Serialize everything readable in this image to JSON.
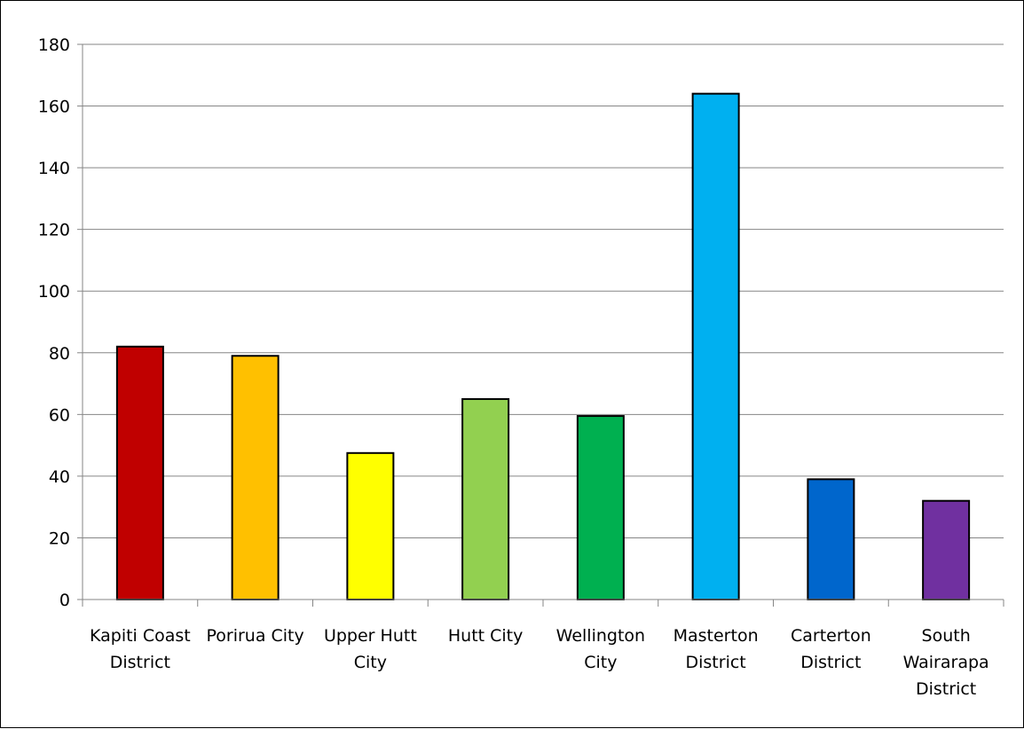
{
  "chart_data": {
    "type": "bar",
    "title": "",
    "xlabel": "",
    "ylabel": "",
    "ylim": [
      0,
      180
    ],
    "yticks": [
      0,
      20,
      40,
      60,
      80,
      100,
      120,
      140,
      160,
      180
    ],
    "grid": true,
    "legend": "none",
    "categories": [
      [
        "Kapiti Coast",
        "District"
      ],
      [
        "Porirua City"
      ],
      [
        "Upper Hutt",
        "City"
      ],
      [
        "Hutt City"
      ],
      [
        "Wellington",
        "City"
      ],
      [
        "Masterton",
        "District"
      ],
      [
        "Carterton",
        "District"
      ],
      [
        "South",
        "Wairarapa",
        "District"
      ]
    ],
    "values": [
      82,
      79,
      47.5,
      65,
      59.5,
      164,
      39,
      32
    ],
    "colors": [
      "#c00000",
      "#ffc000",
      "#ffff00",
      "#92d050",
      "#00b050",
      "#00b0f0",
      "#0066cc",
      "#7030a0"
    ]
  }
}
